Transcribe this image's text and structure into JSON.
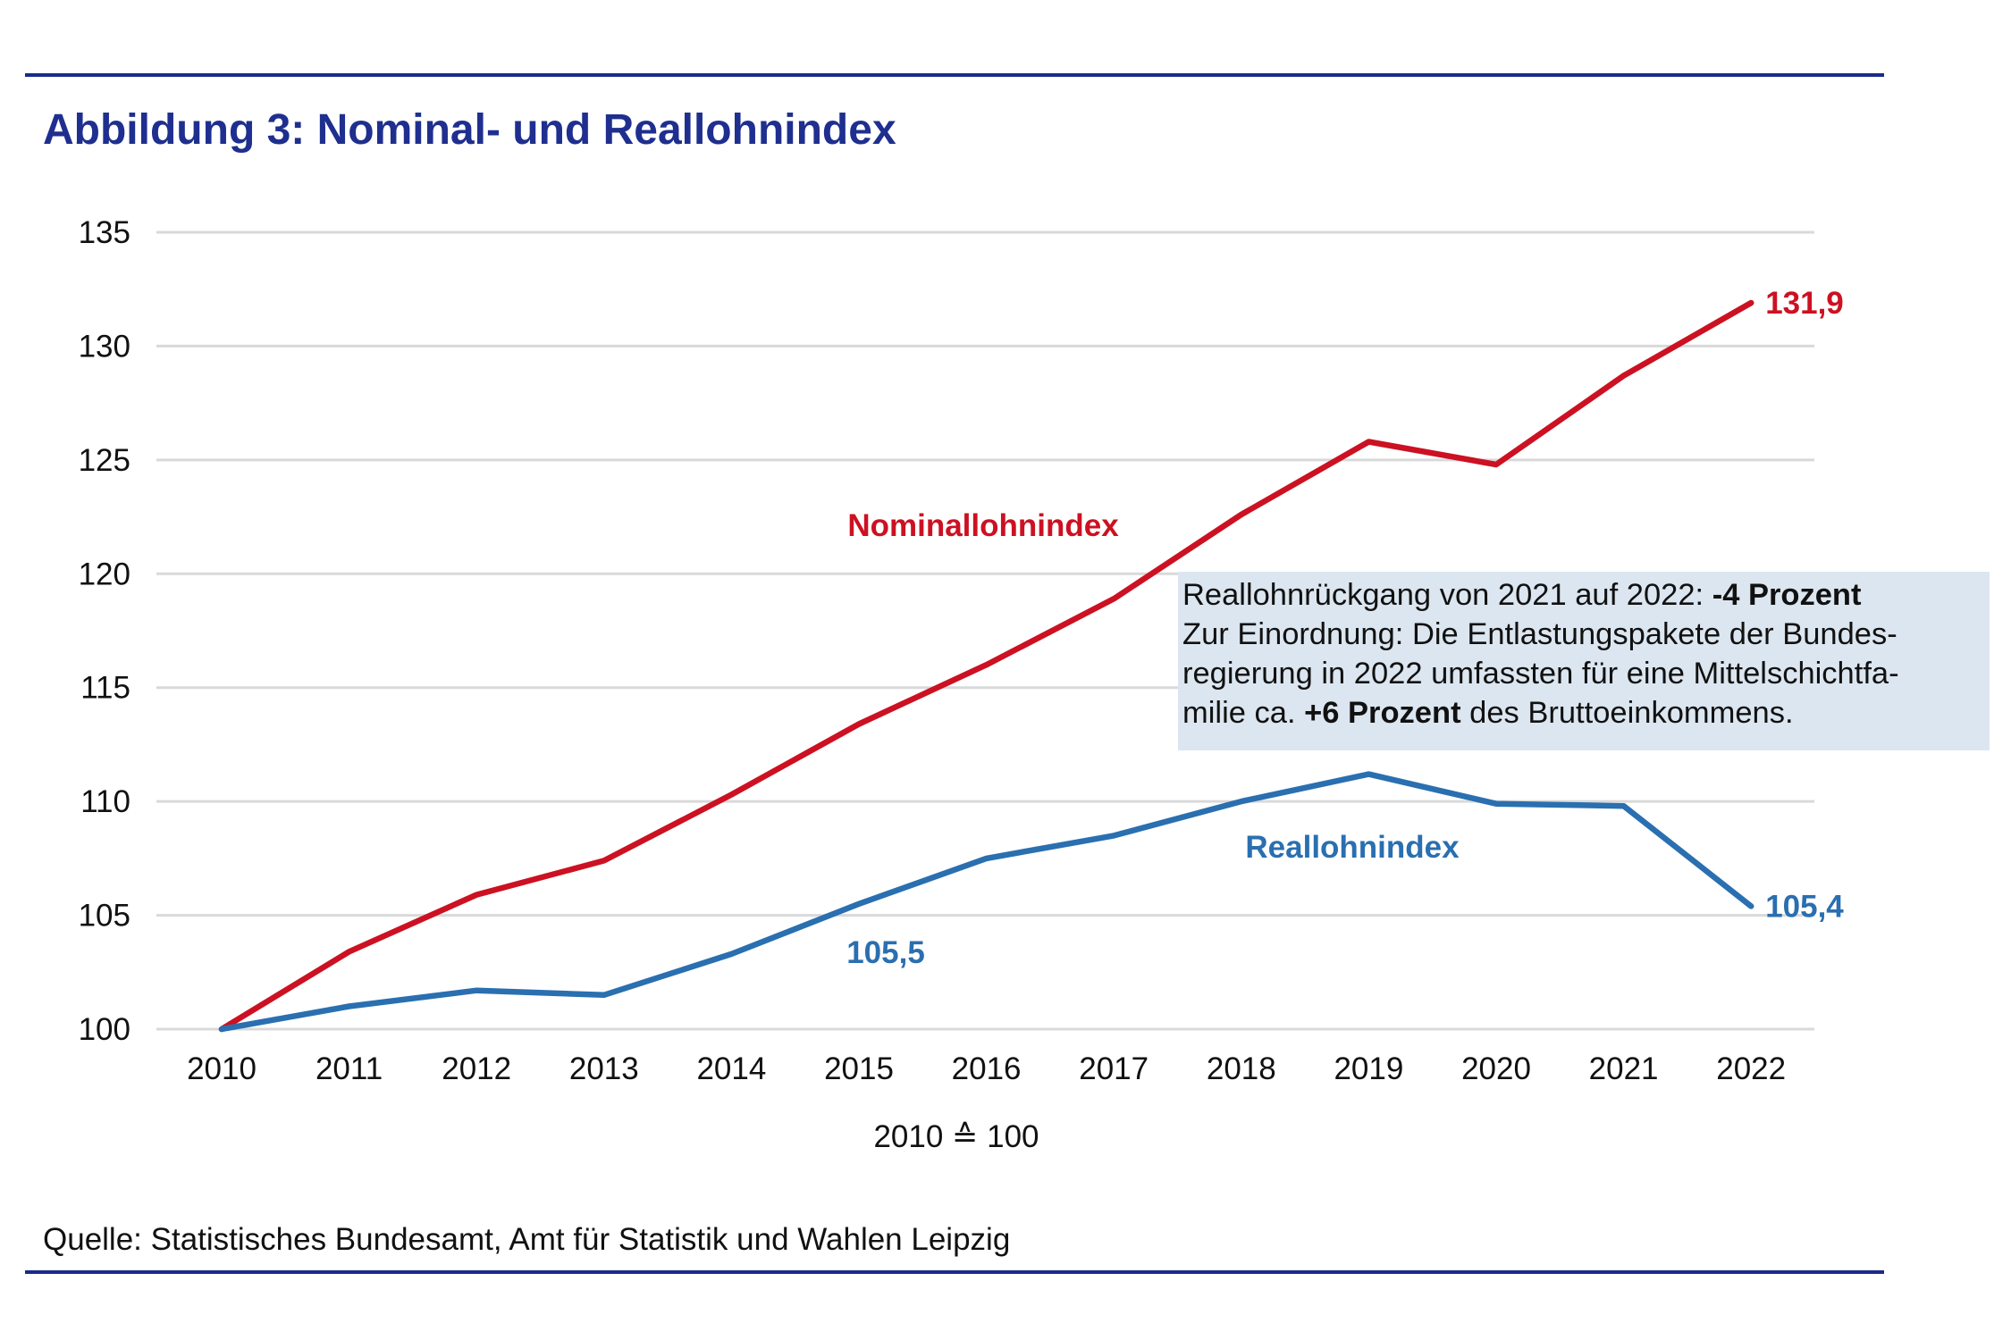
{
  "figure": {
    "title": "Abbildung 3: Nominal- und Reallohnindex",
    "source": "Quelle: Statistisches Bundesamt, Amt für Statistik und Wahlen Leipzig"
  },
  "annotation": {
    "line1_text": "Reallohnrückgang von 2021 auf 2022: ",
    "line1_bold": "-4 Prozent",
    "line2": "Zur Einordnung: Die Entlastungspakete der Bundes-",
    "line3": "regierung in 2022 umfassten für eine Mittelschichtfa-",
    "line4_pre": "milie ca. ",
    "line4_bold": "+6 Prozent",
    "line4_post": " des Bruttoeinkommens."
  },
  "colors": {
    "nominal": "#cc1122",
    "real": "#2a6fb0",
    "grid": "#d9d9d9",
    "title": "#1f2f8f"
  },
  "chart_data": {
    "type": "line",
    "title": "Abbildung 3: Nominal- und Reallohnindex",
    "xlabel": "2010 ≙ 100",
    "ylabel": "",
    "ylim": [
      100,
      135
    ],
    "yticks": [
      100,
      105,
      110,
      115,
      120,
      125,
      130,
      135
    ],
    "grid": true,
    "x": [
      "2010",
      "2011",
      "2012",
      "2013",
      "2014",
      "2015",
      "2016",
      "2017",
      "2018",
      "2019",
      "2020",
      "2021",
      "2022"
    ],
    "series": [
      {
        "name": "Nominallohnindex",
        "color": "#cc1122",
        "values": [
          100,
          103.4,
          105.9,
          107.4,
          110.3,
          113.4,
          116.0,
          118.9,
          122.6,
          125.8,
          124.8,
          128.7,
          131.9
        ]
      },
      {
        "name": "Reallohnindex",
        "color": "#2a6fb0",
        "values": [
          100,
          101.0,
          101.7,
          101.5,
          103.3,
          105.5,
          107.5,
          108.5,
          110.0,
          111.2,
          109.9,
          109.8,
          105.4
        ]
      }
    ],
    "data_labels": [
      {
        "series": 0,
        "index": 12,
        "text": "131,9"
      },
      {
        "series": 1,
        "index": 5,
        "text": "105,5"
      },
      {
        "series": 1,
        "index": 12,
        "text": "105,4"
      }
    ]
  }
}
